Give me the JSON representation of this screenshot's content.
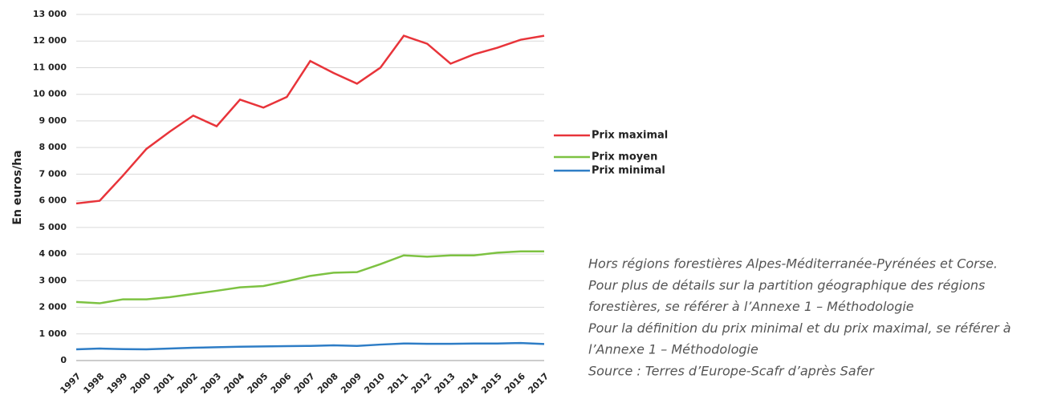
{
  "chart_data": {
    "type": "line",
    "y_label": "En euros/ha",
    "categories": [
      "1997",
      "1998",
      "1999",
      "2000",
      "2001",
      "2002",
      "2003",
      "2004",
      "2005",
      "2006",
      "2007",
      "2008",
      "2009",
      "2010",
      "2011",
      "2012",
      "2013",
      "2014",
      "2015",
      "2016",
      "2017"
    ],
    "series": [
      {
        "name": "Prix maximal",
        "color": "#e8343a",
        "values": [
          5900,
          6000,
          6950,
          7950,
          8600,
          9200,
          8800,
          9800,
          9500,
          9900,
          11250,
          10800,
          10400,
          11000,
          12200,
          11900,
          11150,
          11500,
          11750,
          12050,
          12200
        ]
      },
      {
        "name": "Prix moyen",
        "color": "#7dc242",
        "values": [
          2200,
          2150,
          2300,
          2300,
          2380,
          2500,
          2620,
          2750,
          2800,
          2980,
          3180,
          3300,
          3320,
          3620,
          3950,
          3900,
          3950,
          3950,
          4050,
          4100,
          4100
        ]
      },
      {
        "name": "Prix minimal",
        "color": "#2e7dc6",
        "values": [
          420,
          450,
          430,
          420,
          450,
          480,
          500,
          520,
          530,
          540,
          550,
          570,
          550,
          600,
          640,
          630,
          630,
          640,
          640,
          660,
          620
        ]
      }
    ],
    "ylim": [
      0,
      13000
    ],
    "yticks": [
      0,
      {
        "value": 1000,
        "label": "1 000"
      },
      {
        "value": 2000,
        "label": "2 000"
      },
      {
        "value": 3000,
        "label": "3 000"
      },
      {
        "value": 4000,
        "label": "4 000"
      },
      {
        "value": 5000,
        "label": "5 000"
      },
      {
        "value": 6000,
        "label": "6 000"
      },
      {
        "value": 7000,
        "label": "7 000"
      },
      {
        "value": 8000,
        "label": "8 000"
      },
      {
        "value": 9000,
        "label": "9 000"
      },
      {
        "value": 10000,
        "label": "10 000"
      },
      {
        "value": 11000,
        "label": "11 000"
      },
      {
        "value": 12000,
        "label": "12 000"
      },
      {
        "value": 13000,
        "label": "13 000"
      }
    ],
    "grid": true,
    "legend": "right",
    "notes": [
      "Hors régions forestières Alpes-Méditerranée-Pyrénées et Corse.",
      "Pour plus de détails sur la partition géographique des régions",
      "forestières, se référer à l’Annexe 1 – Méthodologie",
      "Pour la définition du prix minimal et du prix maximal, se référer à",
      "l’Annexe 1 – Méthodologie",
      "Source : Terres d’Europe-Scafr d’après Safer"
    ]
  }
}
